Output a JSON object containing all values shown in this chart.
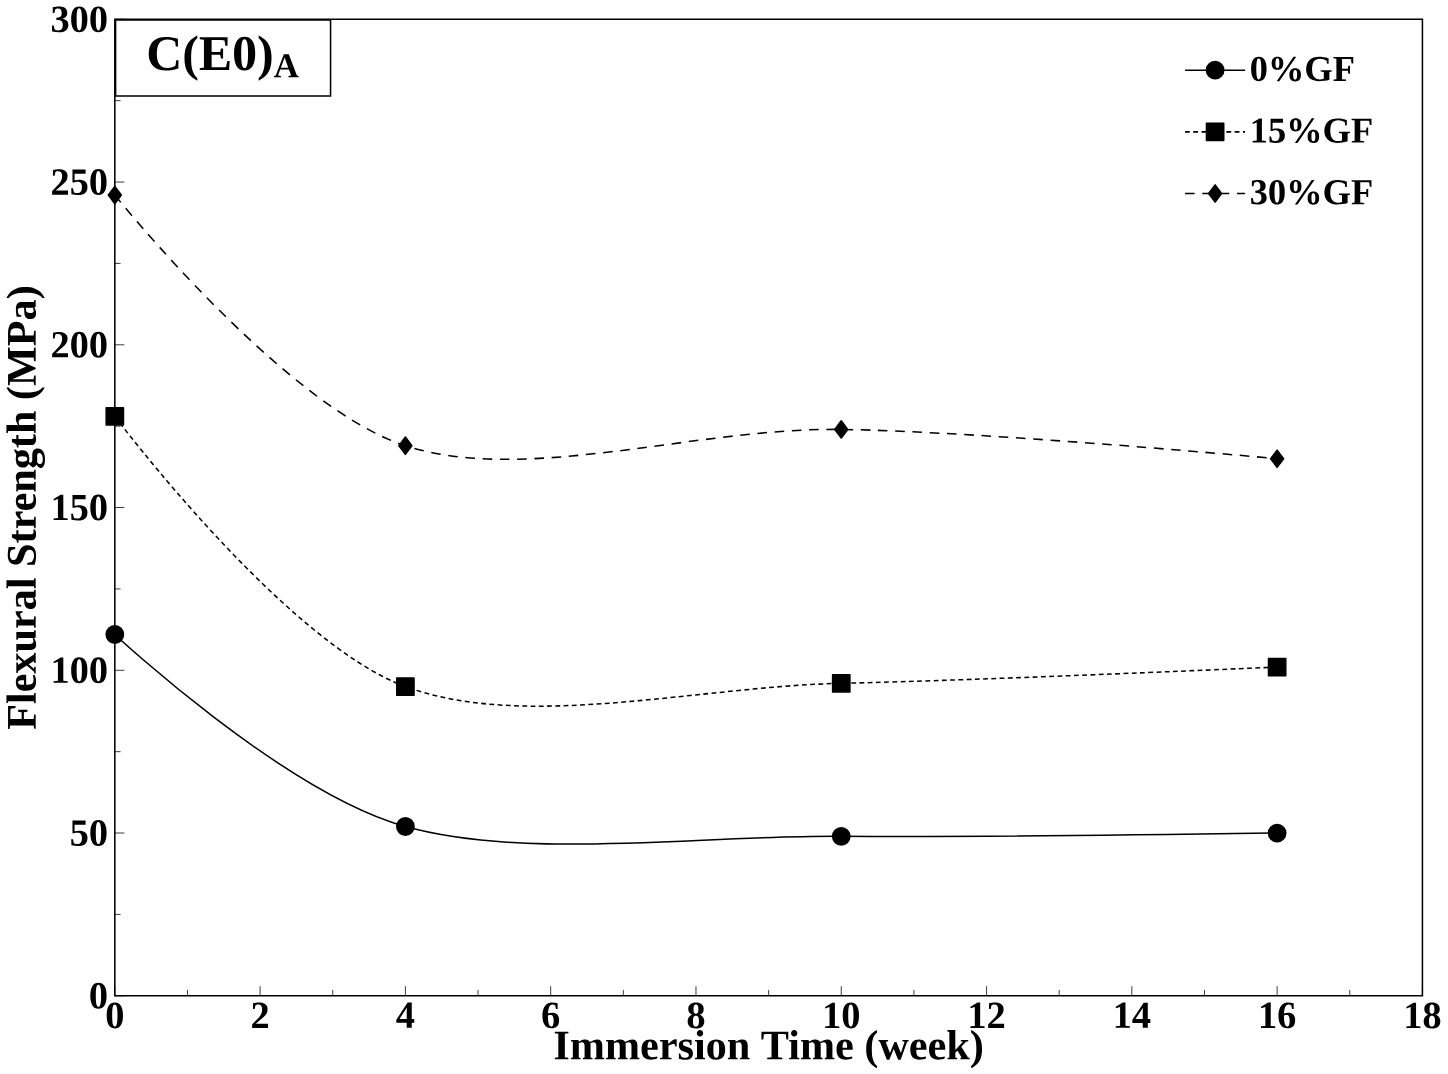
{
  "chart_data": {
    "type": "line",
    "xlabel": "Immersion Time (week)",
    "ylabel": "Flexural Strength  (MPa)",
    "annotations": [
      "C(E0)$_{A}$"
    ],
    "x": [
      0,
      4,
      10,
      16
    ],
    "xlim": [
      0,
      18
    ],
    "xticks": [
      0,
      2,
      4,
      6,
      8,
      10,
      12,
      14,
      16,
      18
    ],
    "ylim": [
      0,
      300
    ],
    "yticks": [
      0,
      50,
      100,
      150,
      200,
      250,
      300
    ],
    "series": [
      {
        "name": "0%GF",
        "color": "#000000",
        "marker": "circle",
        "line_style": "solid",
        "values": [
          111,
          52,
          49,
          50
        ]
      },
      {
        "name": "15%GF",
        "color": "#000000",
        "marker": "square",
        "line_style": "dotted",
        "values": [
          178,
          95,
          96,
          101
        ]
      },
      {
        "name": "30%GF",
        "color": "#000000",
        "marker": "diamond",
        "line_style": "dashed",
        "values": [
          246,
          169,
          174,
          165
        ]
      }
    ],
    "grid": false,
    "legend": "top right"
  }
}
